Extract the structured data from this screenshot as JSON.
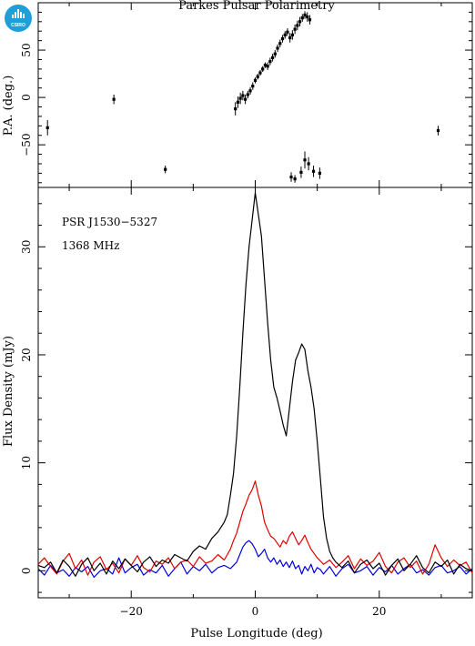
{
  "title": "Parkes Pulsar Polarimetry",
  "logo": {
    "text": "CSIRO",
    "color": "#1e9fd8"
  },
  "colors": {
    "total": "#000000",
    "linear": "#e00000",
    "circular": "#0000dd"
  },
  "chart_data": [
    {
      "type": "scatter",
      "panel": "position-angle",
      "xlim": [
        -35,
        35
      ],
      "ylim": [
        -95,
        100
      ],
      "ylabel": "P.A. (deg.)",
      "yticks": [
        -50,
        0,
        50
      ],
      "xticks": [
        -20,
        0,
        20
      ],
      "points": [
        {
          "x": -33.5,
          "y": -32,
          "err": 8
        },
        {
          "x": -22.8,
          "y": -2,
          "err": 5
        },
        {
          "x": -14.5,
          "y": -76,
          "err": 4
        },
        {
          "x": -3.2,
          "y": -12,
          "err": 7
        },
        {
          "x": -2.8,
          "y": -5,
          "err": 6
        },
        {
          "x": -2.4,
          "y": -1,
          "err": 6
        },
        {
          "x": -2.0,
          "y": 2,
          "err": 5
        },
        {
          "x": -1.6,
          "y": -2,
          "err": 5
        },
        {
          "x": -1.2,
          "y": 3,
          "err": 4
        },
        {
          "x": -0.8,
          "y": 7,
          "err": 4
        },
        {
          "x": -0.4,
          "y": 12,
          "err": 4
        },
        {
          "x": 0.0,
          "y": 18,
          "err": 3
        },
        {
          "x": 0.4,
          "y": 22,
          "err": 3
        },
        {
          "x": 0.8,
          "y": 26,
          "err": 3
        },
        {
          "x": 1.2,
          "y": 30,
          "err": 3
        },
        {
          "x": 1.6,
          "y": 34,
          "err": 3
        },
        {
          "x": 2.0,
          "y": 33,
          "err": 4
        },
        {
          "x": 2.4,
          "y": 38,
          "err": 4
        },
        {
          "x": 2.8,
          "y": 42,
          "err": 4
        },
        {
          "x": 3.2,
          "y": 46,
          "err": 4
        },
        {
          "x": 3.6,
          "y": 52,
          "err": 4
        },
        {
          "x": 4.0,
          "y": 57,
          "err": 4
        },
        {
          "x": 4.4,
          "y": 62,
          "err": 4
        },
        {
          "x": 4.8,
          "y": 66,
          "err": 4
        },
        {
          "x": 5.2,
          "y": 69,
          "err": 4
        },
        {
          "x": 5.6,
          "y": 63,
          "err": 5
        },
        {
          "x": 6.0,
          "y": 66,
          "err": 5
        },
        {
          "x": 6.4,
          "y": 72,
          "err": 5
        },
        {
          "x": 6.8,
          "y": 76,
          "err": 5
        },
        {
          "x": 7.2,
          "y": 80,
          "err": 5
        },
        {
          "x": 7.6,
          "y": 84,
          "err": 4
        },
        {
          "x": 8.0,
          "y": 87,
          "err": 4
        },
        {
          "x": 8.4,
          "y": 85,
          "err": 5
        },
        {
          "x": 8.8,
          "y": 82,
          "err": 5
        },
        {
          "x": 5.8,
          "y": -84,
          "err": 5
        },
        {
          "x": 6.4,
          "y": -86,
          "err": 4
        },
        {
          "x": 7.4,
          "y": -79,
          "err": 6
        },
        {
          "x": 8.0,
          "y": -66,
          "err": 9
        },
        {
          "x": 8.6,
          "y": -70,
          "err": 7
        },
        {
          "x": 9.4,
          "y": -78,
          "err": 6
        },
        {
          "x": 10.4,
          "y": -80,
          "err": 6
        },
        {
          "x": 29.5,
          "y": -35,
          "err": 5
        }
      ]
    },
    {
      "type": "line",
      "panel": "profile",
      "xlim": [
        -35,
        35
      ],
      "ylim": [
        -2.5,
        35.5
      ],
      "xlabel": "Pulse Longitude (deg)",
      "ylabel": "Flux Density (mJy)",
      "yticks": [
        0,
        10,
        20,
        30
      ],
      "xticks": [
        -20,
        0,
        20
      ],
      "annotations": [
        "PSR J1530−5327",
        "1368 MHz"
      ],
      "series": [
        {
          "key": "total",
          "x": [
            -35,
            -34,
            -33,
            -32,
            -31,
            -30,
            -29,
            -28,
            -27,
            -26,
            -25,
            -24,
            -23,
            -22,
            -21,
            -20,
            -19,
            -18,
            -17,
            -16,
            -15,
            -14,
            -13,
            -12,
            -11,
            -10,
            -9,
            -8,
            -7,
            -6,
            -5,
            -4.5,
            -4,
            -3.5,
            -3,
            -2.5,
            -2,
            -1.5,
            -1,
            -0.5,
            0,
            0.5,
            1,
            1.5,
            2,
            2.5,
            3,
            3.5,
            4,
            4.5,
            5,
            5.5,
            6,
            6.5,
            7,
            7.5,
            8,
            8.5,
            9,
            9.5,
            10,
            10.5,
            11,
            11.5,
            12,
            12.5,
            13,
            14,
            15,
            16,
            17,
            18,
            19,
            20,
            21,
            22,
            23,
            24,
            25,
            26,
            27,
            28,
            29,
            30,
            31,
            32,
            33,
            34,
            35
          ],
          "y": [
            0.5,
            0.3,
            0.8,
            -0.2,
            1.0,
            0.4,
            -0.5,
            0.6,
            1.2,
            0.0,
            0.7,
            -0.3,
            0.9,
            0.2,
            1.1,
            0.5,
            -0.1,
            0.8,
            1.3,
            0.4,
            1.0,
            0.7,
            1.5,
            1.2,
            0.9,
            1.8,
            2.3,
            2.0,
            3.0,
            3.6,
            4.5,
            5.2,
            7.0,
            9.0,
            12.5,
            17.0,
            22.0,
            26.5,
            30.0,
            32.5,
            35.0,
            33.0,
            31.0,
            27.0,
            23.0,
            19.5,
            17.0,
            16.0,
            14.8,
            13.5,
            12.5,
            15.0,
            17.5,
            19.5,
            20.2,
            21.0,
            20.5,
            18.5,
            17.0,
            15.0,
            12.0,
            8.5,
            5.0,
            3.0,
            1.8,
            1.2,
            0.8,
            0.3,
            0.9,
            -0.2,
            0.6,
            1.0,
            0.2,
            0.7,
            -0.4,
            0.5,
            1.1,
            0.0,
            0.6,
            1.4,
            0.3,
            -0.2,
            0.8,
            0.4,
            1.0,
            -0.3,
            0.6,
            0.2,
            0.0
          ]
        },
        {
          "key": "linear",
          "x": [
            -35,
            -34,
            -33,
            -32,
            -31,
            -30,
            -29,
            -28,
            -27,
            -26,
            -25,
            -24,
            -23,
            -22,
            -21,
            -20,
            -19,
            -18,
            -17,
            -16,
            -15,
            -14,
            -13,
            -12,
            -11,
            -10,
            -9,
            -8,
            -7,
            -6,
            -5,
            -4,
            -3.5,
            -3,
            -2.5,
            -2,
            -1.5,
            -1,
            -0.5,
            0,
            0.5,
            1,
            1.5,
            2,
            2.5,
            3,
            3.5,
            4,
            4.5,
            5,
            5.5,
            6,
            6.5,
            7,
            7.5,
            8,
            8.5,
            9,
            9.5,
            10,
            10.5,
            11,
            12,
            13,
            14,
            15,
            16,
            17,
            18,
            19,
            20,
            21,
            22,
            23,
            24,
            25,
            26,
            27,
            28,
            29,
            30,
            31,
            32,
            33,
            34,
            35
          ],
          "y": [
            0.6,
            1.2,
            0.4,
            -0.3,
            0.9,
            1.6,
            0.2,
            1.0,
            -0.4,
            0.8,
            1.3,
            0.1,
            0.7,
            -0.2,
            1.1,
            0.5,
            1.4,
            0.3,
            -0.1,
            0.9,
            0.6,
            1.2,
            0.2,
            0.8,
            1.0,
            0.4,
            1.3,
            0.7,
            0.9,
            1.5,
            1.0,
            2.0,
            2.8,
            3.5,
            4.5,
            5.5,
            6.2,
            7.0,
            7.5,
            8.3,
            7.0,
            6.0,
            4.5,
            3.8,
            3.2,
            3.0,
            2.6,
            2.2,
            2.8,
            2.5,
            3.2,
            3.6,
            3.0,
            2.4,
            2.8,
            3.3,
            2.6,
            2.0,
            1.6,
            1.2,
            0.9,
            0.6,
            1.0,
            0.3,
            0.8,
            1.4,
            0.2,
            1.1,
            0.5,
            0.9,
            1.7,
            0.4,
            -0.2,
            0.8,
            1.2,
            0.3,
            0.9,
            -0.3,
            0.6,
            2.4,
            1.2,
            0.4,
            1.0,
            0.5,
            0.8,
            -0.2
          ]
        },
        {
          "key": "circular",
          "x": [
            -35,
            -34,
            -33,
            -32,
            -31,
            -30,
            -29,
            -28,
            -27,
            -26,
            -25,
            -24,
            -23,
            -22,
            -21,
            -20,
            -19,
            -18,
            -17,
            -16,
            -15,
            -14,
            -13,
            -12,
            -11,
            -10,
            -9,
            -8,
            -7,
            -6,
            -5,
            -4,
            -3,
            -2.5,
            -2,
            -1.5,
            -1,
            -0.5,
            0,
            0.5,
            1,
            1.5,
            2,
            2.5,
            3,
            3.5,
            4,
            4.5,
            5,
            5.5,
            6,
            6.5,
            7,
            7.5,
            8,
            8.5,
            9,
            9.5,
            10,
            10.5,
            11,
            12,
            13,
            14,
            15,
            16,
            17,
            18,
            19,
            20,
            21,
            22,
            23,
            24,
            25,
            26,
            27,
            28,
            29,
            30,
            31,
            32,
            33,
            34,
            35
          ],
          "y": [
            0.2,
            -0.4,
            0.5,
            -0.2,
            0.1,
            -0.5,
            0.3,
            -0.1,
            0.4,
            -0.6,
            0.0,
            0.2,
            -0.3,
            1.2,
            -0.2,
            0.3,
            0.6,
            -0.4,
            0.1,
            -0.2,
            0.5,
            -0.5,
            0.2,
            0.8,
            -0.3,
            0.4,
            0.0,
            0.6,
            -0.2,
            0.3,
            0.5,
            0.2,
            0.8,
            1.5,
            2.2,
            2.6,
            2.8,
            2.5,
            2.0,
            1.3,
            1.6,
            2.0,
            1.2,
            0.8,
            1.2,
            0.6,
            1.0,
            0.4,
            0.8,
            0.3,
            0.9,
            0.2,
            0.5,
            -0.3,
            0.4,
            0.0,
            0.6,
            -0.2,
            0.3,
            0.1,
            -0.3,
            0.4,
            -0.5,
            0.2,
            0.6,
            -0.2,
            0.0,
            0.4,
            -0.4,
            0.3,
            -0.1,
            0.5,
            -0.3,
            0.2,
            0.6,
            -0.2,
            0.1,
            -0.4,
            0.3,
            0.5,
            -0.2,
            0.0,
            0.4,
            -0.3,
            0.2
          ]
        }
      ]
    }
  ]
}
